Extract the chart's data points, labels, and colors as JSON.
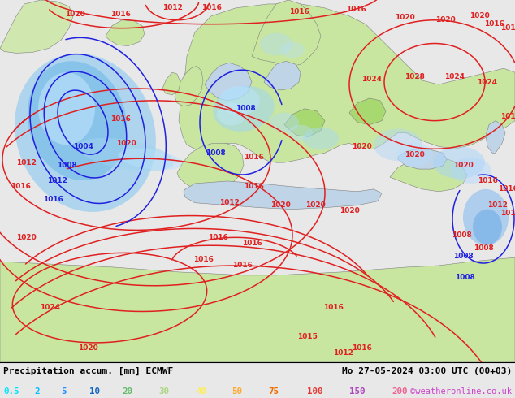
{
  "title_left": "Precipitation accum. [mm] ECMWF",
  "title_right": "Mo 27-05-2024 03:00 UTC (00+03)",
  "credit": "©weatheronline.co.uk",
  "legend_values": [
    "0.5",
    "2",
    "5",
    "10",
    "20",
    "30",
    "40",
    "50",
    "75",
    "100",
    "150",
    "200"
  ],
  "legend_colors": [
    "#00e5ff",
    "#00bfff",
    "#1e90ff",
    "#1565c0",
    "#66bb6a",
    "#aed581",
    "#ffee58",
    "#ffa726",
    "#ef6c00",
    "#e53935",
    "#ab47bc",
    "#f06292"
  ],
  "bg_ocean": "#d8d8d8",
  "bg_land_light": "#c8e6a0",
  "bg_land_dark": "#a8d880",
  "sea_color": "#c8d8e8",
  "precip_light": "#a0d8f8",
  "precip_mid": "#70c0f0",
  "precip_dark": "#40a8e8",
  "figsize": [
    6.34,
    4.9
  ],
  "dpi": 100,
  "red_isobar": "#e02020",
  "blue_isobar": "#2020e0",
  "label_fontsize": 6.5,
  "isobar_lw": 1.1
}
